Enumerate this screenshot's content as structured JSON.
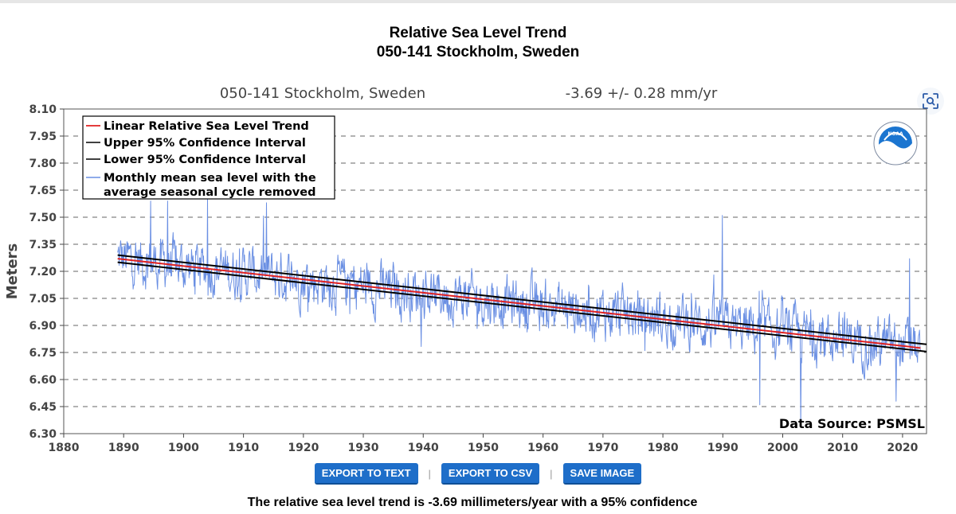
{
  "header": {
    "title_line1": "Relative Sea Level Trend",
    "title_line2": "050-141 Stockholm, Sweden"
  },
  "colors": {
    "series_blue": "#6a8fe3",
    "trend_red": "#e02020",
    "ci_black": "#000000",
    "grid": "#666666",
    "button_blue": "#1e6ec9",
    "noaa_blue": "#1b75d0"
  },
  "chart_data": {
    "type": "line",
    "station_label": "050-141 Stockholm, Sweden",
    "trend_label": "-3.69 +/-  0.28 mm/yr",
    "ylabel": "Meters",
    "xlabel": "",
    "xlim": [
      1880,
      2024
    ],
    "ylim": [
      6.3,
      8.1
    ],
    "xticks": [
      "1880",
      "1890",
      "1900",
      "1910",
      "1920",
      "1930",
      "1940",
      "1950",
      "1960",
      "1970",
      "1980",
      "1990",
      "2000",
      "2010",
      "2020"
    ],
    "yticks": [
      "8.10",
      "7.95",
      "7.80",
      "7.65",
      "7.50",
      "7.35",
      "7.20",
      "7.05",
      "6.90",
      "6.75",
      "6.60",
      "6.45",
      "6.30"
    ],
    "grid": "horizontal dashed",
    "legend_position": "top-left",
    "legend": [
      {
        "label": "Linear Relative Sea Level Trend",
        "color": "#e02020"
      },
      {
        "label": "Upper 95% Confidence Interval",
        "color": "#000000"
      },
      {
        "label": "Lower 95% Confidence Interval",
        "color": "#000000"
      },
      {
        "label_line1": "Monthly mean sea level with the",
        "label_line2": "average seasonal cycle removed",
        "color": "#6a8fe3"
      }
    ],
    "source_label": "Data Source: PSMSL",
    "logo_text": "NOAA",
    "trend": {
      "x": [
        1889,
        2023
      ],
      "y": [
        7.27,
        6.775
      ]
    },
    "upper_ci": {
      "x": [
        1889,
        2024
      ],
      "y": [
        7.29,
        6.795
      ]
    },
    "lower_ci": {
      "x": [
        1889,
        2024
      ],
      "y": [
        7.25,
        6.755
      ]
    },
    "monthly_series": {
      "start_year": 1889,
      "end_year": 2023,
      "start_value": 7.27,
      "end_value": 6.775,
      "highlights": [
        {
          "x": 1894.5,
          "y": 7.59
        },
        {
          "x": 1897.3,
          "y": 7.59
        },
        {
          "x": 1904.0,
          "y": 7.6
        },
        {
          "x": 1913.8,
          "y": 7.58
        },
        {
          "x": 1989.9,
          "y": 7.51
        },
        {
          "x": 1996.2,
          "y": 6.46
        },
        {
          "x": 2003.0,
          "y": 6.34
        },
        {
          "x": 2018.9,
          "y": 6.48
        },
        {
          "x": 2021.2,
          "y": 7.27
        }
      ]
    }
  },
  "buttons": {
    "export_text": "EXPORT TO TEXT",
    "export_csv": "EXPORT TO CSV",
    "save_image": "SAVE IMAGE",
    "separator": "|"
  },
  "footer": {
    "text": "The relative sea level trend is -3.69 millimeters/year with a 95% confidence"
  },
  "icons": {
    "lens": "lens-search-icon"
  }
}
